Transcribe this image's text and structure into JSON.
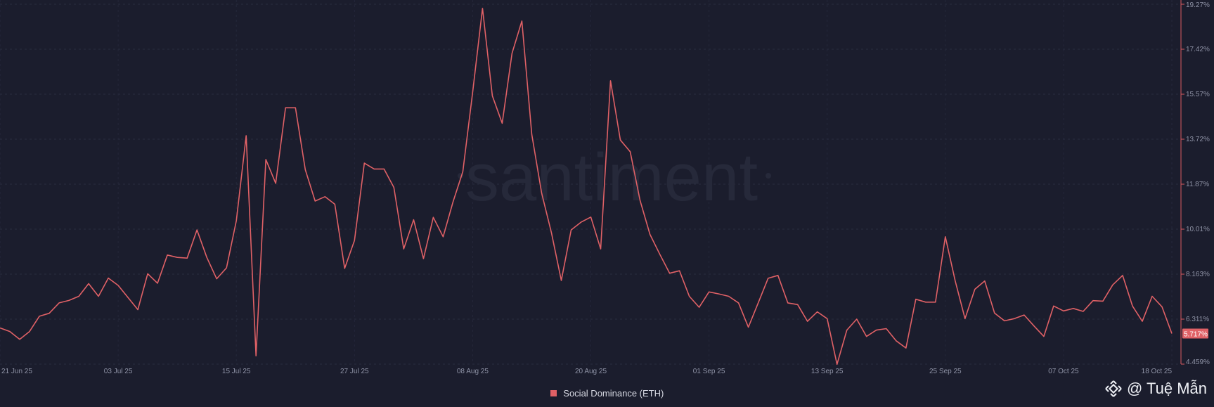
{
  "chart_data": {
    "type": "line",
    "title": "",
    "xlabel": "",
    "ylabel": "",
    "x_ticks": [
      "21 Jun 25",
      "03 Jul 25",
      "15 Jul 25",
      "27 Jul 25",
      "08 Aug 25",
      "20 Aug 25",
      "01 Sep 25",
      "13 Sep 25",
      "25 Sep 25",
      "07 Oct 25",
      "18 Oct 25"
    ],
    "y_ticks": [
      "4.459%",
      "6.311%",
      "8.163%",
      "10.01%",
      "11.87%",
      "13.72%",
      "15.57%",
      "17.42%",
      "19.27%"
    ],
    "ylim": [
      4.459,
      19.27
    ],
    "grid": true,
    "series": [
      {
        "name": "Social Dominance (ETH)",
        "color": "#e06166",
        "x": [
          "2025-06-21",
          "2025-06-22",
          "2025-06-23",
          "2025-06-24",
          "2025-06-25",
          "2025-06-26",
          "2025-06-27",
          "2025-06-28",
          "2025-06-29",
          "2025-06-30",
          "2025-07-01",
          "2025-07-02",
          "2025-07-03",
          "2025-07-04",
          "2025-07-05",
          "2025-07-06",
          "2025-07-07",
          "2025-07-08",
          "2025-07-09",
          "2025-07-10",
          "2025-07-11",
          "2025-07-12",
          "2025-07-13",
          "2025-07-14",
          "2025-07-15",
          "2025-07-16",
          "2025-07-17",
          "2025-07-18",
          "2025-07-19",
          "2025-07-20",
          "2025-07-21",
          "2025-07-22",
          "2025-07-23",
          "2025-07-24",
          "2025-07-25",
          "2025-07-26",
          "2025-07-27",
          "2025-07-28",
          "2025-07-29",
          "2025-07-30",
          "2025-07-31",
          "2025-08-01",
          "2025-08-02",
          "2025-08-03",
          "2025-08-04",
          "2025-08-05",
          "2025-08-06",
          "2025-08-07",
          "2025-08-08",
          "2025-08-09",
          "2025-08-10",
          "2025-08-11",
          "2025-08-12",
          "2025-08-13",
          "2025-08-14",
          "2025-08-15",
          "2025-08-16",
          "2025-08-17",
          "2025-08-18",
          "2025-08-19",
          "2025-08-20",
          "2025-08-21",
          "2025-08-22",
          "2025-08-23",
          "2025-08-24",
          "2025-08-25",
          "2025-08-26",
          "2025-08-27",
          "2025-08-28",
          "2025-08-29",
          "2025-08-30",
          "2025-08-31",
          "2025-09-01",
          "2025-09-02",
          "2025-09-03",
          "2025-09-04",
          "2025-09-05",
          "2025-09-06",
          "2025-09-07",
          "2025-09-08",
          "2025-09-09",
          "2025-09-10",
          "2025-09-11",
          "2025-09-12",
          "2025-09-13",
          "2025-09-14",
          "2025-09-15",
          "2025-09-16",
          "2025-09-17",
          "2025-09-18",
          "2025-09-19",
          "2025-09-20",
          "2025-09-21",
          "2025-09-22",
          "2025-09-23",
          "2025-09-24",
          "2025-09-25",
          "2025-09-26",
          "2025-09-27",
          "2025-09-28",
          "2025-09-29",
          "2025-09-30",
          "2025-10-01",
          "2025-10-02",
          "2025-10-03",
          "2025-10-04",
          "2025-10-05",
          "2025-10-06",
          "2025-10-07",
          "2025-10-08",
          "2025-10-09",
          "2025-10-10",
          "2025-10-11",
          "2025-10-12",
          "2025-10-13",
          "2025-10-14",
          "2025-10-15",
          "2025-10-16",
          "2025-10-17",
          "2025-10-18"
        ],
        "values": [
          5.95,
          5.8,
          5.48,
          5.8,
          6.43,
          6.55,
          6.98,
          7.08,
          7.25,
          7.77,
          7.25,
          8.0,
          7.7,
          7.2,
          6.7,
          8.18,
          7.79,
          8.95,
          8.85,
          8.82,
          9.98,
          8.85,
          7.97,
          8.42,
          10.36,
          13.86,
          4.8,
          12.88,
          11.9,
          15.01,
          15.01,
          12.46,
          11.17,
          11.35,
          11.04,
          8.4,
          9.55,
          12.73,
          12.49,
          12.49,
          11.73,
          9.2,
          10.4,
          8.8,
          10.5,
          9.7,
          11.13,
          12.38,
          15.65,
          19.1,
          15.5,
          14.37,
          17.25,
          18.58,
          13.91,
          11.5,
          9.86,
          7.9,
          9.98,
          10.3,
          10.51,
          9.2,
          16.12,
          13.68,
          13.2,
          11.2,
          9.8,
          8.98,
          8.2,
          8.3,
          7.25,
          6.8,
          7.43,
          7.35,
          7.25,
          6.98,
          5.98,
          6.98,
          7.99,
          8.11,
          6.98,
          6.91,
          6.22,
          6.61,
          6.33,
          4.45,
          5.86,
          6.31,
          5.6,
          5.86,
          5.92,
          5.42,
          5.12,
          7.13,
          7.01,
          7.01,
          9.7,
          7.89,
          6.33,
          7.54,
          7.88,
          6.56,
          6.24,
          6.33,
          6.48,
          6.03,
          5.6,
          6.85,
          6.65,
          6.75,
          6.63,
          7.07,
          7.05,
          7.72,
          8.11,
          6.85,
          6.22,
          7.25,
          6.82,
          5.717
        ],
        "last_value_label": "5.717%"
      }
    ]
  },
  "legend": {
    "label": "Social Dominance (ETH)"
  },
  "watermark": {
    "text": "santiment",
    "author": "@ Tuệ Mẫn"
  }
}
